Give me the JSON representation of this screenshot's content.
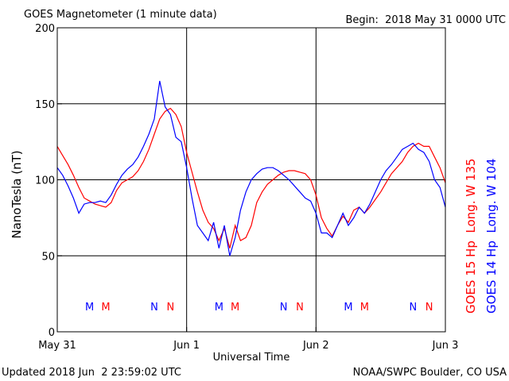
{
  "chart_data": {
    "type": "line",
    "title": "GOES Magnetometer (1 minute data)",
    "subtitle": "Begin:  2018 May 31 0000 UTC",
    "y_label": "NanoTesla (nT)",
    "x_label": "Universal Time",
    "footer_left": "Updated 2018 Jun  2 23:59:02 UTC",
    "footer_right": "NOAA/SWPC Boulder, CO USA",
    "x": [
      0,
      1,
      2,
      3,
      4,
      5,
      6,
      7,
      8,
      9,
      10,
      11,
      12,
      13,
      14,
      15,
      16,
      17,
      18,
      19,
      20,
      21,
      22,
      23,
      24,
      25,
      26,
      27,
      28,
      29,
      30,
      31,
      32,
      33,
      34,
      35,
      36,
      37,
      38,
      39,
      40,
      41,
      42,
      43,
      44,
      45,
      46,
      47,
      48,
      49,
      50,
      51,
      52,
      53,
      54,
      55,
      56,
      57,
      58,
      59,
      60,
      61,
      62,
      63,
      64,
      65,
      66,
      67,
      68,
      69,
      70,
      71,
      72
    ],
    "series": [
      {
        "name": "GOES 15 Hp  Long. W 135",
        "color": "#ff0000",
        "values": [
          122,
          116,
          110,
          103,
          95,
          88,
          86,
          84,
          83,
          82,
          85,
          93,
          98,
          100,
          102,
          106,
          112,
          120,
          130,
          140,
          145,
          147,
          143,
          135,
          118,
          105,
          92,
          80,
          72,
          68,
          60,
          68,
          55,
          70,
          60,
          62,
          70,
          85,
          92,
          97,
          100,
          103,
          105,
          106,
          106,
          105,
          104,
          100,
          90,
          75,
          68,
          63,
          70,
          76,
          72,
          80,
          82,
          78,
          82,
          87,
          92,
          98,
          104,
          108,
          112,
          118,
          122,
          124,
          122,
          122,
          115,
          108,
          98
        ]
      },
      {
        "name": "GOES 14 Hp  Long. W 104",
        "color": "#0000ff",
        "values": [
          108,
          103,
          96,
          88,
          78,
          84,
          85,
          85,
          86,
          85,
          90,
          97,
          103,
          107,
          110,
          115,
          122,
          130,
          140,
          165,
          148,
          143,
          128,
          125,
          108,
          88,
          70,
          65,
          60,
          72,
          55,
          70,
          50,
          62,
          80,
          92,
          100,
          104,
          107,
          108,
          108,
          106,
          103,
          100,
          96,
          92,
          88,
          86,
          78,
          65,
          65,
          62,
          70,
          78,
          70,
          75,
          82,
          78,
          84,
          92,
          100,
          106,
          110,
          115,
          120,
          122,
          124,
          120,
          118,
          112,
          100,
          95,
          82
        ]
      }
    ],
    "markers": [
      {
        "text": "M",
        "x": 6,
        "color": "#0000ff"
      },
      {
        "text": "M",
        "x": 9,
        "color": "#ff0000"
      },
      {
        "text": "N",
        "x": 18,
        "color": "#0000ff"
      },
      {
        "text": "N",
        "x": 21,
        "color": "#ff0000"
      },
      {
        "text": "M",
        "x": 30,
        "color": "#0000ff"
      },
      {
        "text": "M",
        "x": 33,
        "color": "#ff0000"
      },
      {
        "text": "N",
        "x": 42,
        "color": "#0000ff"
      },
      {
        "text": "N",
        "x": 45,
        "color": "#ff0000"
      },
      {
        "text": "M",
        "x": 54,
        "color": "#0000ff"
      },
      {
        "text": "M",
        "x": 57,
        "color": "#ff0000"
      },
      {
        "text": "N",
        "x": 66,
        "color": "#0000ff"
      },
      {
        "text": "N",
        "x": 69,
        "color": "#ff0000"
      }
    ],
    "xlim": [
      0,
      72
    ],
    "xticks": [
      {
        "value": 0,
        "label": "May 31"
      },
      {
        "value": 24,
        "label": "Jun 1"
      },
      {
        "value": 48,
        "label": "Jun 2"
      },
      {
        "value": 72,
        "label": "Jun 3"
      }
    ],
    "ylim": [
      0,
      200
    ],
    "yticks": [
      0,
      50,
      100,
      150,
      200
    ],
    "grid": true
  }
}
